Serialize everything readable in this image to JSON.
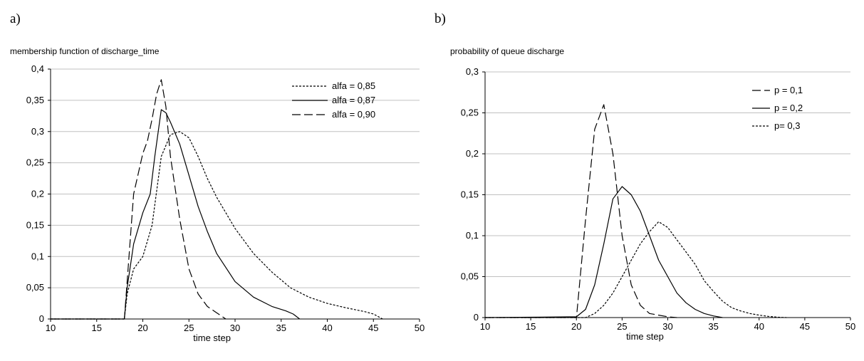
{
  "chart_data": [
    {
      "type": "line",
      "panel_label": "a)",
      "title": "membership function of discharge_time",
      "xlabel": "time step",
      "ylabel": "",
      "xlim": [
        10,
        50
      ],
      "ylim": [
        0,
        0.4
      ],
      "x_ticks": [
        10,
        15,
        20,
        25,
        30,
        35,
        40,
        45,
        50
      ],
      "x_tick_labels": [
        "10",
        "15",
        "20",
        "25",
        "30",
        "35",
        "40",
        "45",
        "50"
      ],
      "y_ticks": [
        0,
        0.05,
        0.1,
        0.15,
        0.2,
        0.25,
        0.3,
        0.35,
        0.4
      ],
      "y_tick_labels": [
        "0",
        "0,05",
        "0,1",
        "0,15",
        "0,2",
        "0,25",
        "0,3",
        "0,35",
        "0,4"
      ],
      "grid": "horizontal",
      "legend_position": "top-right",
      "series": [
        {
          "name": "alfa = 0,85",
          "dash": "dotted",
          "points": [
            [
              10,
              0
            ],
            [
              18,
              0
            ],
            [
              18.3,
              0.04
            ],
            [
              19,
              0.08
            ],
            [
              20,
              0.1
            ],
            [
              21,
              0.15
            ],
            [
              22,
              0.26
            ],
            [
              23,
              0.295
            ],
            [
              24,
              0.3
            ],
            [
              25,
              0.29
            ],
            [
              26,
              0.26
            ],
            [
              27,
              0.225
            ],
            [
              28,
              0.195
            ],
            [
              30,
              0.145
            ],
            [
              32,
              0.105
            ],
            [
              34,
              0.075
            ],
            [
              36,
              0.05
            ],
            [
              38,
              0.035
            ],
            [
              40,
              0.025
            ],
            [
              42,
              0.018
            ],
            [
              44,
              0.012
            ],
            [
              45,
              0.008
            ],
            [
              46,
              0
            ]
          ]
        },
        {
          "name": "alfa = 0,87",
          "dash": "solid",
          "points": [
            [
              10,
              0
            ],
            [
              18,
              0
            ],
            [
              18.3,
              0.05
            ],
            [
              19,
              0.12
            ],
            [
              20,
              0.17
            ],
            [
              20.8,
              0.2
            ],
            [
              21.3,
              0.26
            ],
            [
              22,
              0.335
            ],
            [
              22.5,
              0.33
            ],
            [
              23,
              0.315
            ],
            [
              24,
              0.28
            ],
            [
              25,
              0.23
            ],
            [
              26,
              0.18
            ],
            [
              27,
              0.14
            ],
            [
              28,
              0.105
            ],
            [
              30,
              0.06
            ],
            [
              32,
              0.035
            ],
            [
              34,
              0.02
            ],
            [
              35.5,
              0.013
            ],
            [
              36.3,
              0.008
            ],
            [
              37,
              0
            ]
          ]
        },
        {
          "name": "alfa = 0,90",
          "dash": "dashed",
          "points": [
            [
              10,
              0
            ],
            [
              18,
              0
            ],
            [
              18.3,
              0.06
            ],
            [
              19,
              0.2
            ],
            [
              20,
              0.265
            ],
            [
              20.5,
              0.285
            ],
            [
              21,
              0.32
            ],
            [
              21.5,
              0.36
            ],
            [
              22,
              0.383
            ],
            [
              22.5,
              0.34
            ],
            [
              23,
              0.26
            ],
            [
              24,
              0.16
            ],
            [
              25,
              0.08
            ],
            [
              26,
              0.04
            ],
            [
              27,
              0.02
            ],
            [
              28,
              0.01
            ],
            [
              29,
              0
            ]
          ]
        }
      ]
    },
    {
      "type": "line",
      "panel_label": "b)",
      "title": "probability of queue discharge",
      "xlabel": "time step",
      "ylabel": "",
      "xlim": [
        10,
        50
      ],
      "ylim": [
        0,
        0.3
      ],
      "x_ticks": [
        10,
        15,
        20,
        25,
        30,
        35,
        40,
        45,
        50
      ],
      "x_tick_labels": [
        "10",
        "15",
        "20",
        "25",
        "30",
        "35",
        "40",
        "45",
        "50"
      ],
      "y_ticks": [
        0,
        0.05,
        0.1,
        0.15,
        0.2,
        0.25,
        0.3
      ],
      "y_tick_labels": [
        "0",
        "0,05",
        "0,1",
        "0,15",
        "0,2",
        "0,25",
        "0,3"
      ],
      "grid": "horizontal",
      "legend_position": "top-right",
      "series": [
        {
          "name": "p = 0,1",
          "dash": "dashed",
          "points": [
            [
              10,
              0
            ],
            [
              20,
              0
            ],
            [
              21,
              0.12
            ],
            [
              22,
              0.23
            ],
            [
              23,
              0.26
            ],
            [
              24,
              0.2
            ],
            [
              25,
              0.1
            ],
            [
              26,
              0.04
            ],
            [
              27,
              0.015
            ],
            [
              28,
              0.005
            ],
            [
              30,
              0.001
            ],
            [
              31,
              0
            ]
          ]
        },
        {
          "name": "p = 0,2",
          "dash": "solid",
          "points": [
            [
              10,
              0
            ],
            [
              20,
              0.001
            ],
            [
              21,
              0.01
            ],
            [
              22,
              0.04
            ],
            [
              23,
              0.09
            ],
            [
              24,
              0.145
            ],
            [
              25,
              0.16
            ],
            [
              26,
              0.15
            ],
            [
              27,
              0.13
            ],
            [
              28,
              0.1
            ],
            [
              29,
              0.07
            ],
            [
              30,
              0.05
            ],
            [
              31,
              0.03
            ],
            [
              32,
              0.018
            ],
            [
              33,
              0.01
            ],
            [
              34,
              0.005
            ],
            [
              35,
              0.002
            ],
            [
              36,
              0
            ]
          ]
        },
        {
          "name": "p= 0,3",
          "dash": "dotted",
          "points": [
            [
              10,
              0
            ],
            [
              21,
              0
            ],
            [
              22,
              0.005
            ],
            [
              23,
              0.015
            ],
            [
              24,
              0.03
            ],
            [
              25,
              0.05
            ],
            [
              26,
              0.07
            ],
            [
              27,
              0.09
            ],
            [
              28,
              0.105
            ],
            [
              29,
              0.117
            ],
            [
              30,
              0.11
            ],
            [
              31,
              0.095
            ],
            [
              32,
              0.08
            ],
            [
              33,
              0.065
            ],
            [
              34,
              0.045
            ],
            [
              35,
              0.032
            ],
            [
              36,
              0.02
            ],
            [
              37,
              0.012
            ],
            [
              38,
              0.008
            ],
            [
              39,
              0.005
            ],
            [
              40,
              0.003
            ],
            [
              41,
              0.0015
            ],
            [
              42,
              0.0005
            ],
            [
              43,
              0
            ]
          ]
        }
      ]
    }
  ]
}
